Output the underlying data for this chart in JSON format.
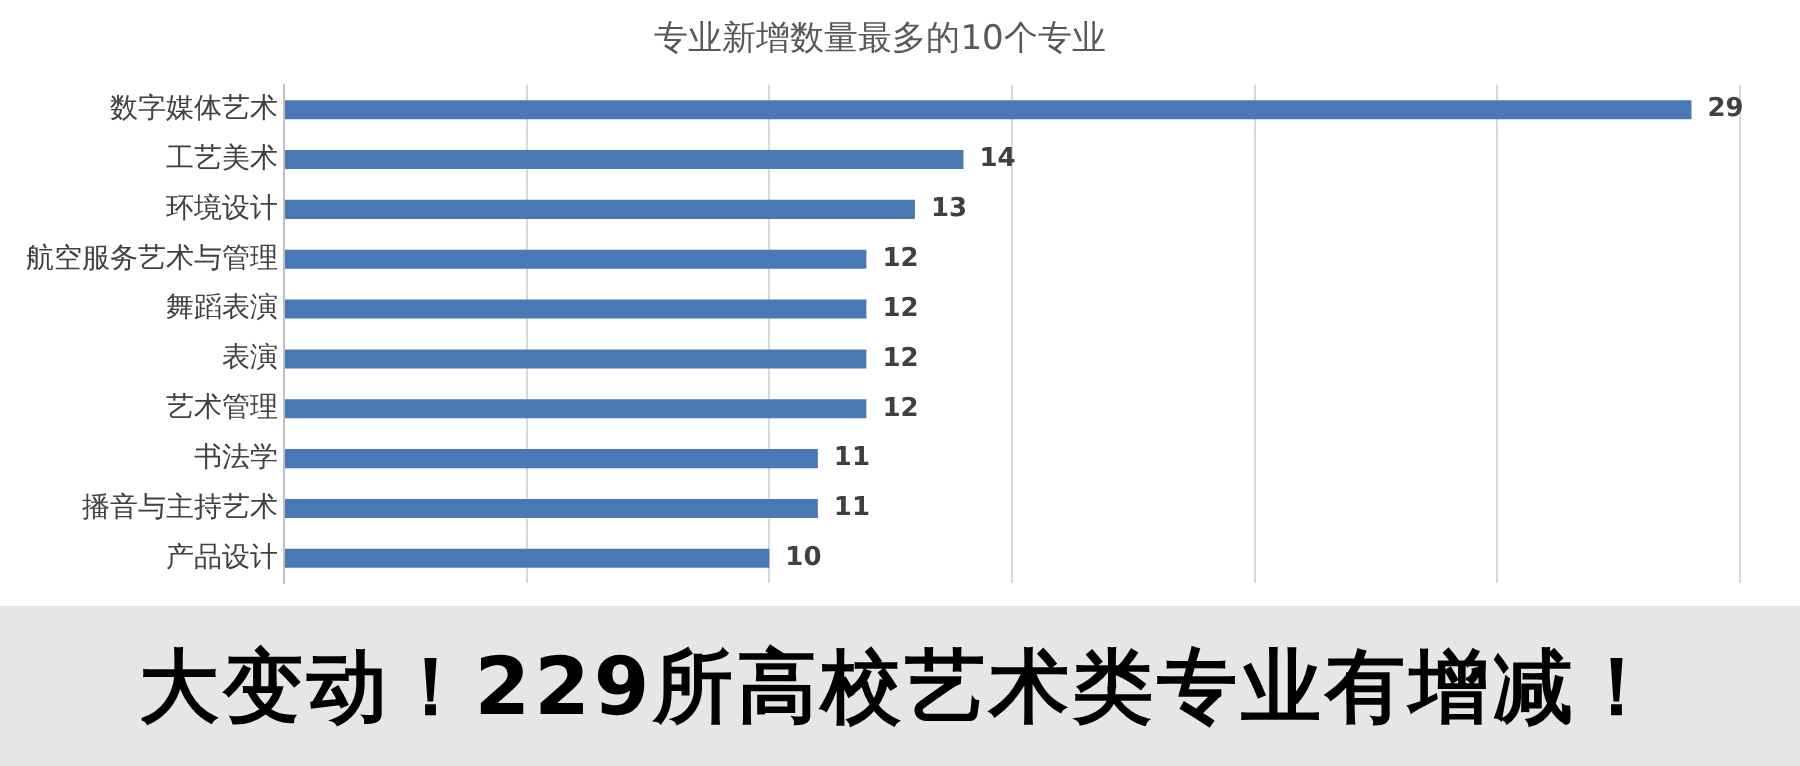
{
  "chart_data": {
    "type": "bar",
    "orientation": "horizontal",
    "title": "专业新增数量最多的10个专业",
    "categories": [
      "数字媒体艺术",
      "工艺美术",
      "环境设计",
      "航空服务艺术与管理",
      "舞蹈表演",
      "表演",
      "艺术管理",
      "书法学",
      "播音与主持艺术",
      "产品设计"
    ],
    "values": [
      29,
      14,
      13,
      12,
      12,
      12,
      12,
      11,
      11,
      10
    ],
    "color": "#4a78b5",
    "xlim": [
      0,
      30
    ],
    "xticks": [
      {
        "value": 0,
        "label": null
      },
      {
        "value": 5,
        "label": null
      },
      {
        "value": 10,
        "label": null
      },
      {
        "value": 15,
        "label": null
      },
      {
        "value": 20,
        "label": null
      },
      {
        "value": 25,
        "label": null
      },
      {
        "value": 30,
        "label": null
      }
    ],
    "grid": "x",
    "tick_labels": "y",
    "data_labels": true,
    "annotations": [
      "大变动！229所高校艺术类专业有增减！"
    ]
  }
}
